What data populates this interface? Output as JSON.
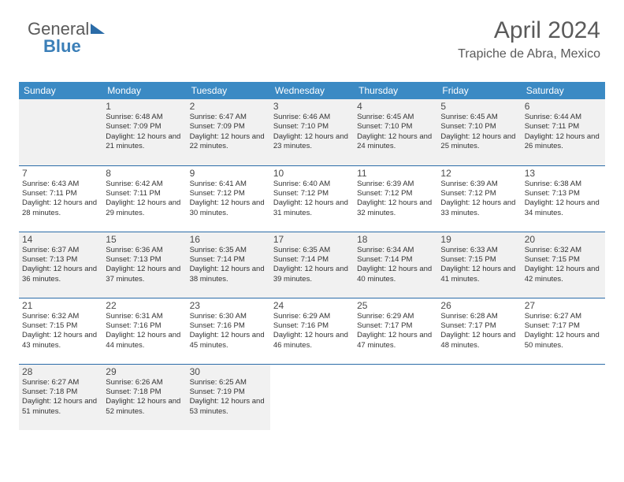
{
  "logo": {
    "part1": "General",
    "part2": "Blue"
  },
  "title": "April 2024",
  "location": "Trapiche de Abra, Mexico",
  "colors": {
    "header_bg": "#3b8ac4",
    "header_text": "#ffffff",
    "border": "#2b6ca8",
    "shaded_bg": "#f1f1f1",
    "text": "#333333",
    "title_text": "#5a5a5a"
  },
  "day_headers": [
    "Sunday",
    "Monday",
    "Tuesday",
    "Wednesday",
    "Thursday",
    "Friday",
    "Saturday"
  ],
  "weeks": [
    [
      {
        "blank": true,
        "shaded": true
      },
      {
        "day": "1",
        "shaded": true,
        "sunrise": "Sunrise: 6:48 AM",
        "sunset": "Sunset: 7:09 PM",
        "daylight": "Daylight: 12 hours and 21 minutes."
      },
      {
        "day": "2",
        "shaded": true,
        "sunrise": "Sunrise: 6:47 AM",
        "sunset": "Sunset: 7:09 PM",
        "daylight": "Daylight: 12 hours and 22 minutes."
      },
      {
        "day": "3",
        "shaded": true,
        "sunrise": "Sunrise: 6:46 AM",
        "sunset": "Sunset: 7:10 PM",
        "daylight": "Daylight: 12 hours and 23 minutes."
      },
      {
        "day": "4",
        "shaded": true,
        "sunrise": "Sunrise: 6:45 AM",
        "sunset": "Sunset: 7:10 PM",
        "daylight": "Daylight: 12 hours and 24 minutes."
      },
      {
        "day": "5",
        "shaded": true,
        "sunrise": "Sunrise: 6:45 AM",
        "sunset": "Sunset: 7:10 PM",
        "daylight": "Daylight: 12 hours and 25 minutes."
      },
      {
        "day": "6",
        "shaded": true,
        "sunrise": "Sunrise: 6:44 AM",
        "sunset": "Sunset: 7:11 PM",
        "daylight": "Daylight: 12 hours and 26 minutes."
      }
    ],
    [
      {
        "day": "7",
        "sunrise": "Sunrise: 6:43 AM",
        "sunset": "Sunset: 7:11 PM",
        "daylight": "Daylight: 12 hours and 28 minutes."
      },
      {
        "day": "8",
        "sunrise": "Sunrise: 6:42 AM",
        "sunset": "Sunset: 7:11 PM",
        "daylight": "Daylight: 12 hours and 29 minutes."
      },
      {
        "day": "9",
        "sunrise": "Sunrise: 6:41 AM",
        "sunset": "Sunset: 7:12 PM",
        "daylight": "Daylight: 12 hours and 30 minutes."
      },
      {
        "day": "10",
        "sunrise": "Sunrise: 6:40 AM",
        "sunset": "Sunset: 7:12 PM",
        "daylight": "Daylight: 12 hours and 31 minutes."
      },
      {
        "day": "11",
        "sunrise": "Sunrise: 6:39 AM",
        "sunset": "Sunset: 7:12 PM",
        "daylight": "Daylight: 12 hours and 32 minutes."
      },
      {
        "day": "12",
        "sunrise": "Sunrise: 6:39 AM",
        "sunset": "Sunset: 7:12 PM",
        "daylight": "Daylight: 12 hours and 33 minutes."
      },
      {
        "day": "13",
        "sunrise": "Sunrise: 6:38 AM",
        "sunset": "Sunset: 7:13 PM",
        "daylight": "Daylight: 12 hours and 34 minutes."
      }
    ],
    [
      {
        "day": "14",
        "shaded": true,
        "sunrise": "Sunrise: 6:37 AM",
        "sunset": "Sunset: 7:13 PM",
        "daylight": "Daylight: 12 hours and 36 minutes."
      },
      {
        "day": "15",
        "shaded": true,
        "sunrise": "Sunrise: 6:36 AM",
        "sunset": "Sunset: 7:13 PM",
        "daylight": "Daylight: 12 hours and 37 minutes."
      },
      {
        "day": "16",
        "shaded": true,
        "sunrise": "Sunrise: 6:35 AM",
        "sunset": "Sunset: 7:14 PM",
        "daylight": "Daylight: 12 hours and 38 minutes."
      },
      {
        "day": "17",
        "shaded": true,
        "sunrise": "Sunrise: 6:35 AM",
        "sunset": "Sunset: 7:14 PM",
        "daylight": "Daylight: 12 hours and 39 minutes."
      },
      {
        "day": "18",
        "shaded": true,
        "sunrise": "Sunrise: 6:34 AM",
        "sunset": "Sunset: 7:14 PM",
        "daylight": "Daylight: 12 hours and 40 minutes."
      },
      {
        "day": "19",
        "shaded": true,
        "sunrise": "Sunrise: 6:33 AM",
        "sunset": "Sunset: 7:15 PM",
        "daylight": "Daylight: 12 hours and 41 minutes."
      },
      {
        "day": "20",
        "shaded": true,
        "sunrise": "Sunrise: 6:32 AM",
        "sunset": "Sunset: 7:15 PM",
        "daylight": "Daylight: 12 hours and 42 minutes."
      }
    ],
    [
      {
        "day": "21",
        "sunrise": "Sunrise: 6:32 AM",
        "sunset": "Sunset: 7:15 PM",
        "daylight": "Daylight: 12 hours and 43 minutes."
      },
      {
        "day": "22",
        "sunrise": "Sunrise: 6:31 AM",
        "sunset": "Sunset: 7:16 PM",
        "daylight": "Daylight: 12 hours and 44 minutes."
      },
      {
        "day": "23",
        "sunrise": "Sunrise: 6:30 AM",
        "sunset": "Sunset: 7:16 PM",
        "daylight": "Daylight: 12 hours and 45 minutes."
      },
      {
        "day": "24",
        "sunrise": "Sunrise: 6:29 AM",
        "sunset": "Sunset: 7:16 PM",
        "daylight": "Daylight: 12 hours and 46 minutes."
      },
      {
        "day": "25",
        "sunrise": "Sunrise: 6:29 AM",
        "sunset": "Sunset: 7:17 PM",
        "daylight": "Daylight: 12 hours and 47 minutes."
      },
      {
        "day": "26",
        "sunrise": "Sunrise: 6:28 AM",
        "sunset": "Sunset: 7:17 PM",
        "daylight": "Daylight: 12 hours and 48 minutes."
      },
      {
        "day": "27",
        "sunrise": "Sunrise: 6:27 AM",
        "sunset": "Sunset: 7:17 PM",
        "daylight": "Daylight: 12 hours and 50 minutes."
      }
    ],
    [
      {
        "day": "28",
        "shaded": true,
        "sunrise": "Sunrise: 6:27 AM",
        "sunset": "Sunset: 7:18 PM",
        "daylight": "Daylight: 12 hours and 51 minutes."
      },
      {
        "day": "29",
        "shaded": true,
        "sunrise": "Sunrise: 6:26 AM",
        "sunset": "Sunset: 7:18 PM",
        "daylight": "Daylight: 12 hours and 52 minutes."
      },
      {
        "day": "30",
        "shaded": true,
        "sunrise": "Sunrise: 6:25 AM",
        "sunset": "Sunset: 7:19 PM",
        "daylight": "Daylight: 12 hours and 53 minutes."
      },
      {
        "blank": true,
        "tail": true
      },
      {
        "blank": true,
        "tail": true
      },
      {
        "blank": true,
        "tail": true
      },
      {
        "blank": true,
        "tail": true
      }
    ]
  ]
}
